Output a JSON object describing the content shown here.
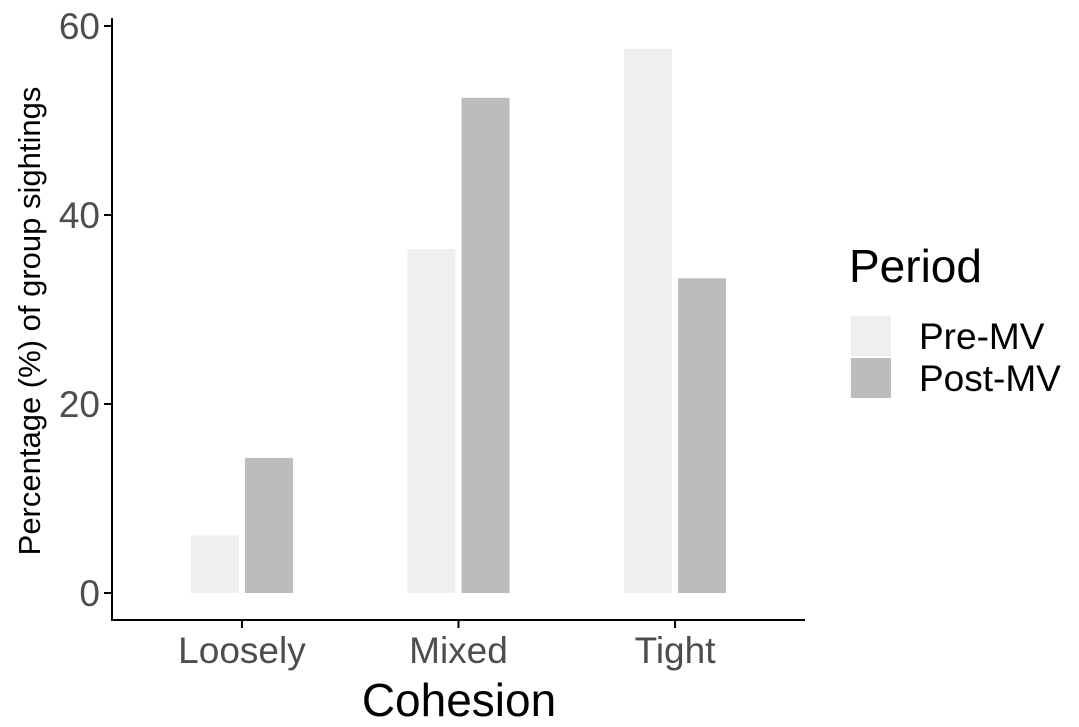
{
  "chart_data": {
    "type": "bar",
    "title": "",
    "xlabel": "Cohesion",
    "ylabel": "Percentage (%) of group sightings",
    "categories": [
      "Loosely",
      "Mixed",
      "Tight"
    ],
    "series": [
      {
        "name": "Pre-MV",
        "values": [
          6.1,
          36.4,
          57.6
        ],
        "color": "#efefef"
      },
      {
        "name": "Post-MV",
        "values": [
          14.3,
          52.4,
          33.3
        ],
        "color": "#bcbcbc"
      }
    ],
    "ylim": [
      0,
      61.5
    ],
    "yticks": [
      0,
      20,
      40,
      60
    ],
    "grid": false,
    "legend": {
      "title": "Period",
      "placement": "right"
    }
  }
}
